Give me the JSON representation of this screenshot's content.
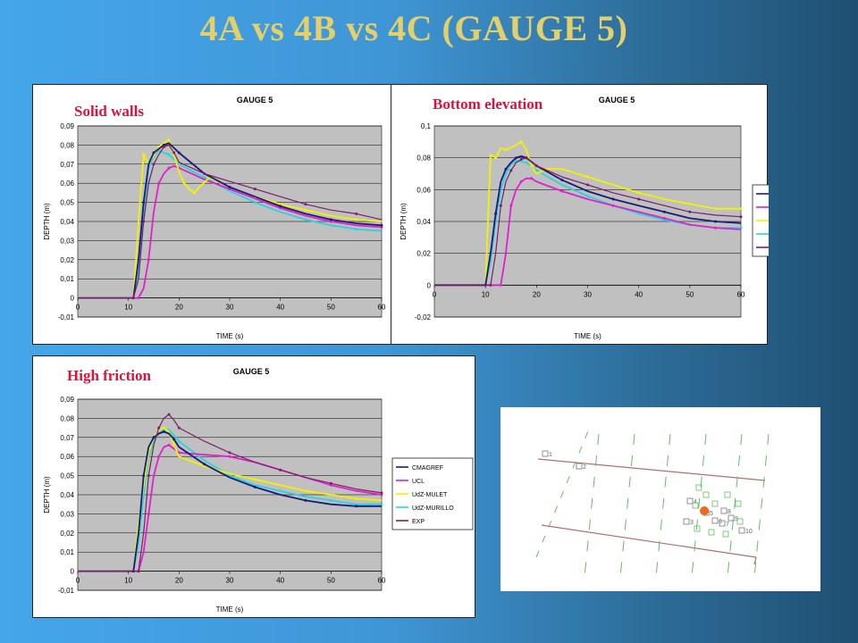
{
  "slide_title": "4A vs 4B vs 4C (GAUGE 5)",
  "colors": {
    "CMAGREF": "#1a1a7a",
    "UCL": "#e020d0",
    "UdZ-MULET": "#f2f200",
    "UdZ-MURILLO": "#28d4dc",
    "EXP": "#7a1e6a",
    "plot_bg": "#c0c0c0",
    "label_red": "#d7153c",
    "title_gold": "#e3d06a"
  },
  "panels": [
    {
      "id": "a",
      "label": "Solid walls"
    },
    {
      "id": "b",
      "label": "Bottom elevation"
    },
    {
      "id": "c",
      "label": "High friction"
    }
  ],
  "chart_data": [
    {
      "type": "line",
      "title": "GAUGE 5",
      "xlabel": "TIME (s)",
      "ylabel": "DEPTH (m)",
      "xlim": [
        0,
        60
      ],
      "ylim": [
        -0.01,
        0.09
      ],
      "xticks": [
        "0",
        "10",
        "20",
        "30",
        "40",
        "50",
        "60"
      ],
      "yticks": [
        "-0,01",
        "0",
        "0,01",
        "0,02",
        "0,03",
        "0,04",
        "0,05",
        "0,06",
        "0,07",
        "0,08",
        "0,09"
      ],
      "grid": true,
      "legend": "none",
      "series": [
        {
          "name": "CMAGREF",
          "x": [
            0,
            11,
            12,
            13,
            14,
            15,
            16,
            17,
            18,
            20,
            25,
            30,
            35,
            40,
            45,
            50,
            55,
            60
          ],
          "y": [
            0,
            0,
            0.02,
            0.05,
            0.07,
            0.076,
            0.078,
            0.08,
            0.081,
            0.076,
            0.065,
            0.058,
            0.053,
            0.048,
            0.044,
            0.041,
            0.039,
            0.038
          ]
        },
        {
          "name": "UCL",
          "x": [
            0,
            12,
            13,
            14,
            15,
            16,
            17,
            18,
            19,
            20,
            25,
            30,
            35,
            40,
            45,
            50,
            55,
            60
          ],
          "y": [
            0,
            0,
            0.005,
            0.02,
            0.045,
            0.06,
            0.065,
            0.068,
            0.069,
            0.068,
            0.062,
            0.057,
            0.052,
            0.047,
            0.043,
            0.04,
            0.038,
            0.037
          ]
        },
        {
          "name": "UdZ-MULET",
          "x": [
            0,
            11,
            12,
            13,
            14,
            16,
            18,
            19,
            20,
            21,
            22,
            23,
            24,
            26,
            30,
            35,
            40,
            45,
            50,
            55,
            60
          ],
          "y": [
            0,
            0,
            0.04,
            0.075,
            0.07,
            0.079,
            0.083,
            0.075,
            0.066,
            0.06,
            0.057,
            0.055,
            0.058,
            0.063,
            0.058,
            0.053,
            0.049,
            0.046,
            0.043,
            0.041,
            0.04
          ]
        },
        {
          "name": "UdZ-MURILLO",
          "x": [
            0,
            11,
            12,
            13,
            14,
            15,
            16,
            18,
            20,
            25,
            30,
            35,
            40,
            45,
            50,
            55,
            60
          ],
          "y": [
            0,
            0,
            0.015,
            0.045,
            0.068,
            0.074,
            0.077,
            0.075,
            0.07,
            0.063,
            0.056,
            0.05,
            0.045,
            0.041,
            0.038,
            0.036,
            0.035
          ]
        },
        {
          "name": "EXP",
          "x": [
            0,
            11,
            12,
            13,
            14,
            15,
            16,
            17,
            18,
            19,
            20,
            25,
            30,
            35,
            40,
            45,
            50,
            55,
            60
          ],
          "y": [
            0,
            0,
            0.01,
            0.04,
            0.06,
            0.07,
            0.075,
            0.079,
            0.08,
            0.076,
            0.071,
            0.065,
            0.061,
            0.057,
            0.053,
            0.049,
            0.046,
            0.044,
            0.041
          ]
        }
      ]
    },
    {
      "type": "line",
      "title": "GAUGE 5",
      "xlabel": "TIME (s)",
      "ylabel": "DEPTH (m)",
      "xlim": [
        0,
        60
      ],
      "ylim": [
        -0.02,
        0.1
      ],
      "xticks": [
        "0",
        "10",
        "20",
        "30",
        "40",
        "50",
        "60"
      ],
      "yticks": [
        "-0,02",
        "0",
        "0,02",
        "0,04",
        "0,06",
        "0,08",
        "0,1"
      ],
      "grid": true,
      "legend": "right",
      "series": [
        {
          "name": "CMAGREF",
          "x": [
            0,
            10,
            11,
            12,
            13,
            14,
            15,
            16,
            17,
            18,
            20,
            25,
            30,
            35,
            40,
            45,
            50,
            55,
            60
          ],
          "y": [
            0,
            0,
            0.02,
            0.045,
            0.065,
            0.073,
            0.077,
            0.08,
            0.081,
            0.08,
            0.075,
            0.066,
            0.059,
            0.054,
            0.05,
            0.046,
            0.042,
            0.04,
            0.039
          ]
        },
        {
          "name": "UCL",
          "x": [
            0,
            13,
            14,
            15,
            16,
            17,
            18,
            19,
            20,
            25,
            30,
            35,
            40,
            45,
            50,
            55,
            60
          ],
          "y": [
            0,
            0,
            0.02,
            0.05,
            0.06,
            0.065,
            0.067,
            0.067,
            0.065,
            0.059,
            0.054,
            0.05,
            0.046,
            0.042,
            0.038,
            0.036,
            0.035
          ]
        },
        {
          "name": "UdZ-MULET",
          "x": [
            0,
            10,
            11,
            12,
            13,
            14,
            16,
            17,
            18,
            19,
            20,
            22,
            25,
            30,
            35,
            40,
            45,
            50,
            55,
            60
          ],
          "y": [
            0,
            0,
            0.082,
            0.08,
            0.086,
            0.085,
            0.088,
            0.09,
            0.085,
            0.075,
            0.07,
            0.073,
            0.073,
            0.068,
            0.063,
            0.058,
            0.054,
            0.051,
            0.048,
            0.048
          ]
        },
        {
          "name": "UdZ-MURILLO",
          "x": [
            0,
            10,
            11,
            12,
            13,
            14,
            15,
            16,
            18,
            20,
            25,
            30,
            35,
            40,
            45,
            50,
            55,
            60
          ],
          "y": [
            0,
            0,
            0.015,
            0.04,
            0.06,
            0.07,
            0.076,
            0.078,
            0.077,
            0.072,
            0.063,
            0.056,
            0.05,
            0.045,
            0.041,
            0.038,
            0.036,
            0.036
          ]
        },
        {
          "name": "EXP",
          "x": [
            0,
            11,
            12,
            13,
            14,
            15,
            16,
            17,
            18,
            20,
            25,
            30,
            35,
            40,
            45,
            50,
            55,
            60
          ],
          "y": [
            0,
            0,
            0.02,
            0.05,
            0.065,
            0.072,
            0.077,
            0.079,
            0.08,
            0.075,
            0.068,
            0.063,
            0.058,
            0.054,
            0.05,
            0.046,
            0.044,
            0.043
          ]
        }
      ]
    },
    {
      "type": "line",
      "title": "GAUGE 5",
      "xlabel": "TIME (s)",
      "ylabel": "DEPTH (m)",
      "xlim": [
        0,
        60
      ],
      "ylim": [
        -0.01,
        0.09
      ],
      "xticks": [
        "0",
        "10",
        "20",
        "30",
        "40",
        "50",
        "60"
      ],
      "yticks": [
        "-0,01",
        "0",
        "0,01",
        "0,02",
        "0,03",
        "0,04",
        "0,05",
        "0,06",
        "0,07",
        "0,08",
        "0,09"
      ],
      "grid": true,
      "legend": "right",
      "series": [
        {
          "name": "CMAGREF",
          "x": [
            0,
            11,
            12,
            13,
            14,
            15,
            16,
            17,
            18,
            19,
            20,
            25,
            30,
            35,
            40,
            45,
            50,
            55,
            60
          ],
          "y": [
            0,
            0,
            0.02,
            0.05,
            0.065,
            0.07,
            0.072,
            0.073,
            0.072,
            0.069,
            0.065,
            0.056,
            0.049,
            0.044,
            0.04,
            0.037,
            0.035,
            0.034,
            0.034
          ]
        },
        {
          "name": "UCL",
          "x": [
            0,
            12,
            13,
            14,
            15,
            16,
            17,
            18,
            19,
            20,
            25,
            30,
            35,
            40,
            45,
            50,
            55,
            60
          ],
          "y": [
            0,
            0,
            0.01,
            0.03,
            0.05,
            0.06,
            0.065,
            0.066,
            0.064,
            0.062,
            0.061,
            0.06,
            0.057,
            0.053,
            0.049,
            0.045,
            0.042,
            0.04
          ]
        },
        {
          "name": "UdZ-MULET",
          "x": [
            0,
            11,
            12,
            13,
            14,
            15,
            16,
            17,
            18,
            19,
            20,
            25,
            30,
            35,
            40,
            45,
            50,
            55,
            60
          ],
          "y": [
            0,
            0,
            0.025,
            0.045,
            0.062,
            0.07,
            0.074,
            0.075,
            0.073,
            0.066,
            0.06,
            0.055,
            0.051,
            0.048,
            0.045,
            0.042,
            0.04,
            0.038,
            0.037
          ]
        },
        {
          "name": "UdZ-MURILLO",
          "x": [
            0,
            11,
            12,
            13,
            14,
            15,
            16,
            17,
            18,
            20,
            25,
            30,
            35,
            40,
            45,
            50,
            55,
            60
          ],
          "y": [
            0,
            0,
            0.015,
            0.04,
            0.06,
            0.068,
            0.072,
            0.074,
            0.074,
            0.068,
            0.058,
            0.05,
            0.045,
            0.042,
            0.039,
            0.037,
            0.035,
            0.035
          ]
        },
        {
          "name": "EXP",
          "x": [
            0,
            12,
            13,
            14,
            15,
            16,
            17,
            18,
            19,
            20,
            25,
            30,
            35,
            40,
            45,
            50,
            55,
            60
          ],
          "y": [
            0,
            0,
            0.02,
            0.05,
            0.066,
            0.075,
            0.08,
            0.082,
            0.079,
            0.075,
            0.068,
            0.062,
            0.057,
            0.053,
            0.049,
            0.046,
            0.043,
            0.041
          ]
        }
      ]
    }
  ],
  "map": {
    "gauges": [
      "1",
      "2",
      "3",
      "4",
      "5",
      "6",
      "7",
      "8",
      "9",
      "10"
    ],
    "marker_color": "#ef6a1c"
  }
}
